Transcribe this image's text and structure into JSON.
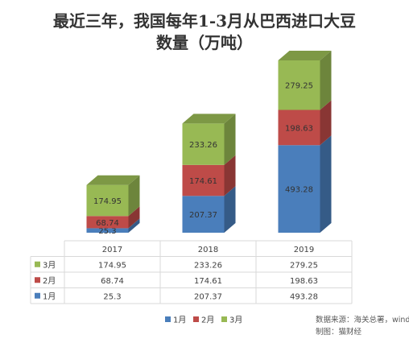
{
  "title_line1": "最近三年，我国每年1-3月从巴西进口大豆",
  "title_line2": "数量（万吨）",
  "chart_data": {
    "type": "bar",
    "stacked": true,
    "three_d": true,
    "categories": [
      "2017",
      "2018",
      "2019"
    ],
    "series": [
      {
        "name": "1月",
        "values": [
          25.3,
          207.37,
          493.28
        ],
        "color": "#4a7ebb"
      },
      {
        "name": "2月",
        "values": [
          68.74,
          174.61,
          198.63
        ],
        "color": "#be4b48"
      },
      {
        "name": "3月",
        "values": [
          174.95,
          233.26,
          279.25
        ],
        "color": "#98b954"
      }
    ],
    "value_labels": [
      [
        "25.3",
        "207.37",
        "493.28"
      ],
      [
        "68.74",
        "174.61",
        "198.63"
      ],
      [
        "174.95",
        "233.26",
        "279.25"
      ]
    ],
    "data_table": true,
    "legend": "bottom-center",
    "grid": false
  },
  "source_note": "数据来源：海关总署，wind",
  "made_by": "制图：猫财经"
}
